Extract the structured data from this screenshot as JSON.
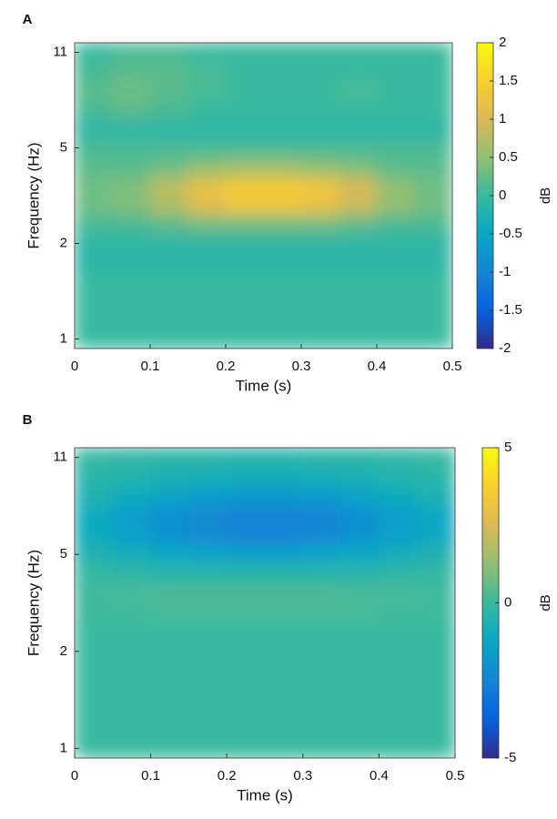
{
  "chart_data": [
    {
      "type": "heatmap",
      "panel_label": "A",
      "xlabel": "Time (s)",
      "ylabel": "Frequency (Hz)",
      "colorbar_label": "dB",
      "colormap": "parula",
      "x": [
        0.025,
        0.075,
        0.125,
        0.175,
        0.225,
        0.275,
        0.325,
        0.375,
        0.425,
        0.475
      ],
      "y": [
        1,
        null,
        null,
        null,
        null,
        2,
        null,
        null,
        null,
        null,
        5,
        null,
        null,
        null,
        null,
        11
      ],
      "xlim": [
        0,
        0.5
      ],
      "xticks": [
        0,
        0.1,
        0.2,
        0.3,
        0.4,
        0.5
      ],
      "clim": [
        -2,
        2
      ],
      "cticks": [
        -2,
        -1.5,
        -1,
        -0.5,
        0,
        0.5,
        1,
        1.5,
        2
      ],
      "values": [
        [
          0,
          0,
          0,
          0,
          0,
          0,
          0,
          0,
          0,
          0
        ],
        [
          0,
          0,
          0,
          0,
          0,
          0,
          0,
          0,
          0,
          0
        ],
        [
          0,
          0,
          0,
          0,
          0,
          0,
          0,
          0,
          0,
          0
        ],
        [
          0,
          0,
          0,
          0,
          0,
          0,
          0,
          0,
          0,
          0
        ],
        [
          -0.1,
          -0.1,
          -0.1,
          -0.1,
          -0.1,
          -0.1,
          -0.1,
          -0.1,
          -0.1,
          -0.1
        ],
        [
          -0.1,
          -0.1,
          -0.1,
          -0.1,
          -0.1,
          -0.1,
          -0.1,
          -0.1,
          -0.1,
          -0.1
        ],
        [
          0.1,
          0.1,
          0.2,
          0.3,
          0.3,
          0.3,
          0.3,
          0.2,
          0.1,
          0.1
        ],
        [
          0.3,
          0.4,
          0.7,
          1.1,
          1.3,
          1.3,
          1.2,
          0.9,
          0.5,
          0.3
        ],
        [
          0.3,
          0.4,
          0.8,
          1.2,
          1.4,
          1.4,
          1.3,
          1.0,
          0.5,
          0.3
        ],
        [
          0.2,
          0.2,
          0.3,
          0.5,
          0.6,
          0.6,
          0.5,
          0.4,
          0.2,
          0.2
        ],
        [
          0.1,
          0.1,
          0.1,
          0.1,
          0.1,
          0.1,
          0.1,
          0.1,
          0.1,
          0.1
        ],
        [
          -0.1,
          -0.1,
          -0.1,
          -0.1,
          -0.1,
          -0.1,
          -0.1,
          -0.1,
          -0.1,
          -0.1
        ],
        [
          0.1,
          0.2,
          0.1,
          0,
          0,
          0,
          0,
          0,
          0,
          0
        ],
        [
          0.2,
          0.3,
          0.2,
          0.1,
          0,
          0,
          0,
          0.1,
          0,
          0
        ],
        [
          0.1,
          0.2,
          0.2,
          0.1,
          0,
          0,
          0,
          0,
          0,
          0
        ],
        [
          0,
          0.1,
          0.1,
          0,
          0,
          0,
          0,
          0,
          0,
          0
        ]
      ]
    },
    {
      "type": "heatmap",
      "panel_label": "B",
      "xlabel": "Time (s)",
      "ylabel": "Frequency (Hz)",
      "colorbar_label": "dB",
      "colormap": "parula",
      "x": [
        0.025,
        0.075,
        0.125,
        0.175,
        0.225,
        0.275,
        0.325,
        0.375,
        0.425,
        0.475
      ],
      "y": [
        1,
        null,
        null,
        null,
        null,
        2,
        null,
        null,
        null,
        null,
        5,
        null,
        null,
        null,
        null,
        11
      ],
      "xlim": [
        0,
        0.5
      ],
      "xticks": [
        0,
        0.1,
        0.2,
        0.3,
        0.4,
        0.5
      ],
      "clim": [
        -5,
        5
      ],
      "cticks": [
        -5,
        0,
        5
      ],
      "values": [
        [
          0,
          0,
          0,
          0,
          0,
          0,
          0,
          0,
          0,
          0
        ],
        [
          0,
          0,
          0,
          0,
          0,
          0,
          0,
          0,
          0,
          0
        ],
        [
          0,
          0,
          0,
          0,
          0,
          0,
          0,
          0,
          0,
          0
        ],
        [
          0,
          0,
          0,
          0,
          0,
          0,
          0,
          0,
          0,
          0
        ],
        [
          0,
          0,
          0,
          0,
          0,
          0,
          0,
          0,
          0,
          0
        ],
        [
          0,
          0,
          0,
          0,
          0,
          0,
          0,
          0,
          0,
          0
        ],
        [
          0,
          0,
          0,
          0,
          0,
          0,
          0,
          0,
          0,
          0
        ],
        [
          0.1,
          0.1,
          0.2,
          0.2,
          0.2,
          0.2,
          0.2,
          0.2,
          0.1,
          0.1
        ],
        [
          0.1,
          0.2,
          0.3,
          0.3,
          0.3,
          0.3,
          0.3,
          0.2,
          0.2,
          0.1
        ],
        [
          -0.1,
          -0.2,
          -0.3,
          -0.3,
          -0.3,
          -0.3,
          -0.3,
          -0.3,
          -0.2,
          -0.1
        ],
        [
          -0.5,
          -0.8,
          -1.1,
          -1.3,
          -1.4,
          -1.4,
          -1.3,
          -1.1,
          -0.8,
          -0.6
        ],
        [
          -1.0,
          -1.5,
          -2.0,
          -2.3,
          -2.5,
          -2.5,
          -2.4,
          -2.0,
          -1.5,
          -1.1
        ],
        [
          -1.0,
          -1.6,
          -2.1,
          -2.3,
          -2.6,
          -2.6,
          -2.5,
          -2.1,
          -1.6,
          -1.2
        ],
        [
          -0.6,
          -1.0,
          -1.4,
          -1.6,
          -1.8,
          -1.8,
          -1.7,
          -1.4,
          -1.0,
          -0.7
        ],
        [
          -0.3,
          -0.5,
          -0.7,
          -0.8,
          -0.9,
          -0.9,
          -0.8,
          -0.7,
          -0.5,
          -0.3
        ],
        [
          -0.1,
          -0.2,
          -0.3,
          -0.3,
          -0.4,
          -0.4,
          -0.3,
          -0.3,
          -0.2,
          -0.1
        ]
      ]
    }
  ]
}
